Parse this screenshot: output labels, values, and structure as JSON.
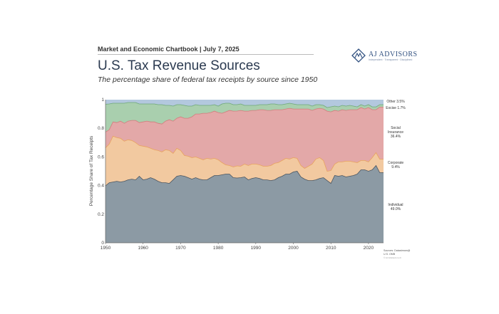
{
  "header": {
    "kicker": "Market and Economic Chartbook | July 7, 2025",
    "title": "U.S. Tax Revenue Sources",
    "subtitle": "The percentage share of federal tax receipts by source since 1950"
  },
  "logo": {
    "name": "AJ ADVISORS",
    "tagline": "Independent · Transparent · Disciplined"
  },
  "chart_data": {
    "type": "area",
    "stacked": true,
    "xlabel": "",
    "ylabel": "Percentage Share of Tax Receipts",
    "xlim": [
      1950,
      2024
    ],
    "ylim": [
      0,
      1
    ],
    "x_ticks": [
      "1950",
      "1960",
      "1970",
      "1980",
      "1990",
      "2000",
      "2010",
      "2020"
    ],
    "y_ticks": [
      "0",
      "0.2",
      "0.4",
      "0.6",
      "0.8",
      "1"
    ],
    "grid": false,
    "x": [
      1950,
      1951,
      1952,
      1953,
      1954,
      1955,
      1956,
      1957,
      1958,
      1959,
      1960,
      1961,
      1962,
      1963,
      1964,
      1965,
      1966,
      1967,
      1968,
      1969,
      1970,
      1971,
      1972,
      1973,
      1974,
      1975,
      1976,
      1977,
      1978,
      1979,
      1980,
      1981,
      1982,
      1983,
      1984,
      1985,
      1986,
      1987,
      1988,
      1989,
      1990,
      1991,
      1992,
      1993,
      1994,
      1995,
      1996,
      1997,
      1998,
      1999,
      2000,
      2001,
      2002,
      2003,
      2004,
      2005,
      2006,
      2007,
      2008,
      2009,
      2010,
      2011,
      2012,
      2013,
      2014,
      2015,
      2016,
      2017,
      2018,
      2019,
      2020,
      2021,
      2022,
      2023,
      2024
    ],
    "series": [
      {
        "name": "Individual",
        "label": "Individual\n49.0%",
        "color": "#8c9aa4",
        "values": [
          0.398,
          0.42,
          0.425,
          0.43,
          0.425,
          0.43,
          0.44,
          0.445,
          0.44,
          0.465,
          0.44,
          0.445,
          0.455,
          0.445,
          0.43,
          0.42,
          0.42,
          0.415,
          0.44,
          0.465,
          0.47,
          0.465,
          0.455,
          0.445,
          0.455,
          0.445,
          0.44,
          0.44,
          0.455,
          0.47,
          0.47,
          0.475,
          0.48,
          0.48,
          0.455,
          0.455,
          0.455,
          0.46,
          0.44,
          0.45,
          0.455,
          0.45,
          0.44,
          0.44,
          0.435,
          0.44,
          0.455,
          0.465,
          0.48,
          0.48,
          0.495,
          0.5,
          0.46,
          0.445,
          0.435,
          0.435,
          0.44,
          0.45,
          0.455,
          0.435,
          0.415,
          0.47,
          0.465,
          0.47,
          0.46,
          0.465,
          0.47,
          0.48,
          0.51,
          0.51,
          0.5,
          0.51,
          0.54,
          0.49,
          0.49
        ]
      },
      {
        "name": "Corporate",
        "label": "Corporate\n9.4%",
        "color": "#f2c9a0",
        "values": [
          0.265,
          0.27,
          0.32,
          0.305,
          0.305,
          0.28,
          0.28,
          0.27,
          0.26,
          0.215,
          0.235,
          0.225,
          0.205,
          0.205,
          0.215,
          0.215,
          0.23,
          0.23,
          0.185,
          0.195,
          0.175,
          0.145,
          0.15,
          0.15,
          0.145,
          0.145,
          0.14,
          0.15,
          0.13,
          0.12,
          0.11,
          0.085,
          0.065,
          0.06,
          0.075,
          0.085,
          0.08,
          0.09,
          0.1,
          0.1,
          0.095,
          0.095,
          0.095,
          0.095,
          0.105,
          0.115,
          0.105,
          0.11,
          0.11,
          0.105,
          0.1,
          0.09,
          0.08,
          0.075,
          0.1,
          0.115,
          0.145,
          0.145,
          0.12,
          0.065,
          0.09,
          0.08,
          0.1,
          0.095,
          0.11,
          0.105,
          0.095,
          0.08,
          0.065,
          0.065,
          0.065,
          0.085,
          0.09,
          0.094,
          0.094
        ]
      },
      {
        "name": "Social Insurance",
        "label": "Social\nInsurance\n36.4%",
        "color": "#e3a8a8",
        "values": [
          0.11,
          0.1,
          0.1,
          0.105,
          0.12,
          0.125,
          0.13,
          0.14,
          0.155,
          0.16,
          0.17,
          0.18,
          0.185,
          0.195,
          0.19,
          0.195,
          0.2,
          0.215,
          0.225,
          0.21,
          0.235,
          0.26,
          0.265,
          0.285,
          0.3,
          0.31,
          0.325,
          0.315,
          0.325,
          0.33,
          0.33,
          0.345,
          0.37,
          0.385,
          0.39,
          0.385,
          0.39,
          0.37,
          0.38,
          0.375,
          0.375,
          0.385,
          0.395,
          0.39,
          0.385,
          0.375,
          0.37,
          0.355,
          0.345,
          0.355,
          0.34,
          0.345,
          0.395,
          0.415,
          0.4,
          0.375,
          0.35,
          0.345,
          0.36,
          0.42,
          0.41,
          0.375,
          0.355,
          0.365,
          0.355,
          0.36,
          0.365,
          0.37,
          0.37,
          0.36,
          0.38,
          0.335,
          0.3,
          0.364,
          0.364
        ]
      },
      {
        "name": "Excise",
        "label": "Excise 1.7%",
        "color": "#a9cfae",
        "values": [
          0.195,
          0.18,
          0.13,
          0.135,
          0.125,
          0.14,
          0.13,
          0.125,
          0.125,
          0.13,
          0.125,
          0.12,
          0.125,
          0.125,
          0.13,
          0.135,
          0.11,
          0.1,
          0.105,
          0.095,
          0.085,
          0.09,
          0.085,
          0.075,
          0.065,
          0.06,
          0.055,
          0.055,
          0.05,
          0.045,
          0.045,
          0.065,
          0.06,
          0.05,
          0.045,
          0.045,
          0.045,
          0.04,
          0.04,
          0.035,
          0.035,
          0.035,
          0.035,
          0.04,
          0.045,
          0.04,
          0.035,
          0.035,
          0.035,
          0.035,
          0.035,
          0.03,
          0.03,
          0.03,
          0.03,
          0.03,
          0.03,
          0.025,
          0.025,
          0.025,
          0.035,
          0.03,
          0.03,
          0.03,
          0.03,
          0.03,
          0.025,
          0.02,
          0.02,
          0.02,
          0.02,
          0.02,
          0.02,
          0.017,
          0.017
        ]
      },
      {
        "name": "Other",
        "label": "Other 3.5%",
        "color": "#b3c8de",
        "values": [
          0.032,
          0.03,
          0.025,
          0.025,
          0.025,
          0.025,
          0.02,
          0.02,
          0.02,
          0.03,
          0.03,
          0.03,
          0.03,
          0.03,
          0.035,
          0.035,
          0.04,
          0.04,
          0.045,
          0.035,
          0.035,
          0.04,
          0.045,
          0.045,
          0.035,
          0.04,
          0.04,
          0.04,
          0.04,
          0.035,
          0.045,
          0.03,
          0.025,
          0.025,
          0.035,
          0.035,
          0.03,
          0.04,
          0.04,
          0.04,
          0.04,
          0.035,
          0.035,
          0.035,
          0.03,
          0.03,
          0.035,
          0.035,
          0.03,
          0.025,
          0.03,
          0.035,
          0.035,
          0.035,
          0.035,
          0.045,
          0.035,
          0.035,
          0.04,
          0.055,
          0.05,
          0.045,
          0.05,
          0.04,
          0.045,
          0.04,
          0.045,
          0.05,
          0.035,
          0.045,
          0.035,
          0.05,
          0.05,
          0.035,
          0.035
        ]
      }
    ],
    "source_lines": [
      "Sources: Datastream@",
      "U.S. OMB"
    ],
    "footnote": "© AJ Advisors LLC"
  }
}
